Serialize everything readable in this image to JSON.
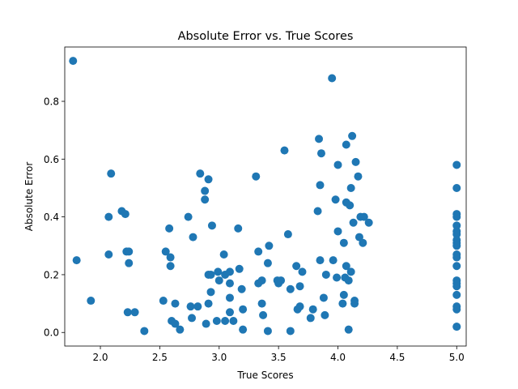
{
  "chart_data": {
    "type": "scatter",
    "title": "Absolute Error vs. True Scores",
    "xlabel": "True Scores",
    "ylabel": "Absolute Error",
    "xlim": [
      1.7,
      5.08
    ],
    "ylim": [
      -0.047,
      0.988
    ],
    "xticks": [
      2.0,
      2.5,
      3.0,
      3.5,
      4.0,
      4.5,
      5.0
    ],
    "xtick_labels": [
      "2.0",
      "2.5",
      "3.0",
      "3.5",
      "4.0",
      "4.5",
      "5.0"
    ],
    "yticks": [
      0.0,
      0.2,
      0.4,
      0.6,
      0.8
    ],
    "ytick_labels": [
      "0.0",
      "0.2",
      "0.4",
      "0.6",
      "0.8"
    ],
    "grid": false,
    "marker_color": "#1f77b4",
    "points": [
      [
        1.77,
        0.94
      ],
      [
        1.8,
        0.25
      ],
      [
        1.92,
        0.11
      ],
      [
        2.07,
        0.4
      ],
      [
        2.07,
        0.27
      ],
      [
        2.09,
        0.55
      ],
      [
        2.18,
        0.42
      ],
      [
        2.21,
        0.41
      ],
      [
        2.22,
        0.28
      ],
      [
        2.24,
        0.28
      ],
      [
        2.24,
        0.24
      ],
      [
        2.23,
        0.07
      ],
      [
        2.29,
        0.07
      ],
      [
        2.37,
        0.005
      ],
      [
        2.53,
        0.11
      ],
      [
        2.55,
        0.28
      ],
      [
        2.58,
        0.36
      ],
      [
        2.59,
        0.23
      ],
      [
        2.59,
        0.26
      ],
      [
        2.6,
        0.04
      ],
      [
        2.63,
        0.03
      ],
      [
        2.63,
        0.1
      ],
      [
        2.67,
        0.01
      ],
      [
        2.74,
        0.4
      ],
      [
        2.76,
        0.09
      ],
      [
        2.77,
        0.05
      ],
      [
        2.78,
        0.33
      ],
      [
        2.82,
        0.09
      ],
      [
        2.84,
        0.55
      ],
      [
        2.88,
        0.46
      ],
      [
        2.88,
        0.49
      ],
      [
        2.89,
        0.03
      ],
      [
        2.91,
        0.53
      ],
      [
        2.91,
        0.2
      ],
      [
        2.93,
        0.2
      ],
      [
        2.91,
        0.1
      ],
      [
        2.93,
        0.14
      ],
      [
        2.94,
        0.37
      ],
      [
        2.98,
        0.04
      ],
      [
        2.99,
        0.21
      ],
      [
        3.0,
        0.18
      ],
      [
        3.04,
        0.27
      ],
      [
        3.05,
        0.2
      ],
      [
        3.05,
        0.04
      ],
      [
        3.09,
        0.17
      ],
      [
        3.09,
        0.21
      ],
      [
        3.09,
        0.12
      ],
      [
        3.09,
        0.07
      ],
      [
        3.12,
        0.04
      ],
      [
        3.16,
        0.36
      ],
      [
        3.17,
        0.22
      ],
      [
        3.19,
        0.15
      ],
      [
        3.2,
        0.08
      ],
      [
        3.2,
        0.01
      ],
      [
        3.31,
        0.54
      ],
      [
        3.33,
        0.28
      ],
      [
        3.33,
        0.17
      ],
      [
        3.36,
        0.18
      ],
      [
        3.37,
        0.06
      ],
      [
        3.36,
        0.1
      ],
      [
        3.41,
        0.24
      ],
      [
        3.41,
        0.005
      ],
      [
        3.42,
        0.3
      ],
      [
        3.49,
        0.18
      ],
      [
        3.5,
        0.17
      ],
      [
        3.52,
        0.18
      ],
      [
        3.55,
        0.63
      ],
      [
        3.58,
        0.34
      ],
      [
        3.6,
        0.15
      ],
      [
        3.6,
        0.005
      ],
      [
        3.65,
        0.23
      ],
      [
        3.66,
        0.08
      ],
      [
        3.68,
        0.09
      ],
      [
        3.68,
        0.16
      ],
      [
        3.7,
        0.21
      ],
      [
        3.77,
        0.05
      ],
      [
        3.79,
        0.08
      ],
      [
        3.83,
        0.42
      ],
      [
        3.84,
        0.67
      ],
      [
        3.85,
        0.51
      ],
      [
        3.85,
        0.25
      ],
      [
        3.86,
        0.62
      ],
      [
        3.88,
        0.12
      ],
      [
        3.89,
        0.06
      ],
      [
        3.9,
        0.2
      ],
      [
        3.95,
        0.88
      ],
      [
        3.96,
        0.25
      ],
      [
        3.98,
        0.46
      ],
      [
        3.99,
        0.19
      ],
      [
        4.0,
        0.58
      ],
      [
        4.0,
        0.35
      ],
      [
        4.04,
        0.1
      ],
      [
        4.05,
        0.13
      ],
      [
        4.05,
        0.31
      ],
      [
        4.06,
        0.19
      ],
      [
        4.07,
        0.65
      ],
      [
        4.07,
        0.45
      ],
      [
        4.07,
        0.23
      ],
      [
        4.09,
        0.01
      ],
      [
        4.09,
        0.18
      ],
      [
        4.1,
        0.44
      ],
      [
        4.11,
        0.5
      ],
      [
        4.11,
        0.21
      ],
      [
        4.12,
        0.68
      ],
      [
        4.13,
        0.38
      ],
      [
        4.14,
        0.11
      ],
      [
        4.14,
        0.1
      ],
      [
        4.15,
        0.59
      ],
      [
        4.17,
        0.54
      ],
      [
        4.18,
        0.33
      ],
      [
        4.19,
        0.4
      ],
      [
        4.21,
        0.31
      ],
      [
        4.22,
        0.4
      ],
      [
        4.26,
        0.38
      ],
      [
        5.0,
        0.58
      ],
      [
        5.0,
        0.5
      ],
      [
        5.0,
        0.41
      ],
      [
        5.0,
        0.4
      ],
      [
        5.0,
        0.37
      ],
      [
        5.0,
        0.35
      ],
      [
        5.0,
        0.34
      ],
      [
        5.0,
        0.32
      ],
      [
        5.0,
        0.31
      ],
      [
        5.0,
        0.3
      ],
      [
        5.0,
        0.27
      ],
      [
        5.0,
        0.26
      ],
      [
        5.0,
        0.23
      ],
      [
        5.0,
        0.18
      ],
      [
        5.0,
        0.17
      ],
      [
        5.0,
        0.16
      ],
      [
        5.0,
        0.13
      ],
      [
        5.0,
        0.09
      ],
      [
        5.0,
        0.08
      ],
      [
        5.0,
        0.02
      ],
      [
        5.0,
        0.02
      ]
    ]
  }
}
